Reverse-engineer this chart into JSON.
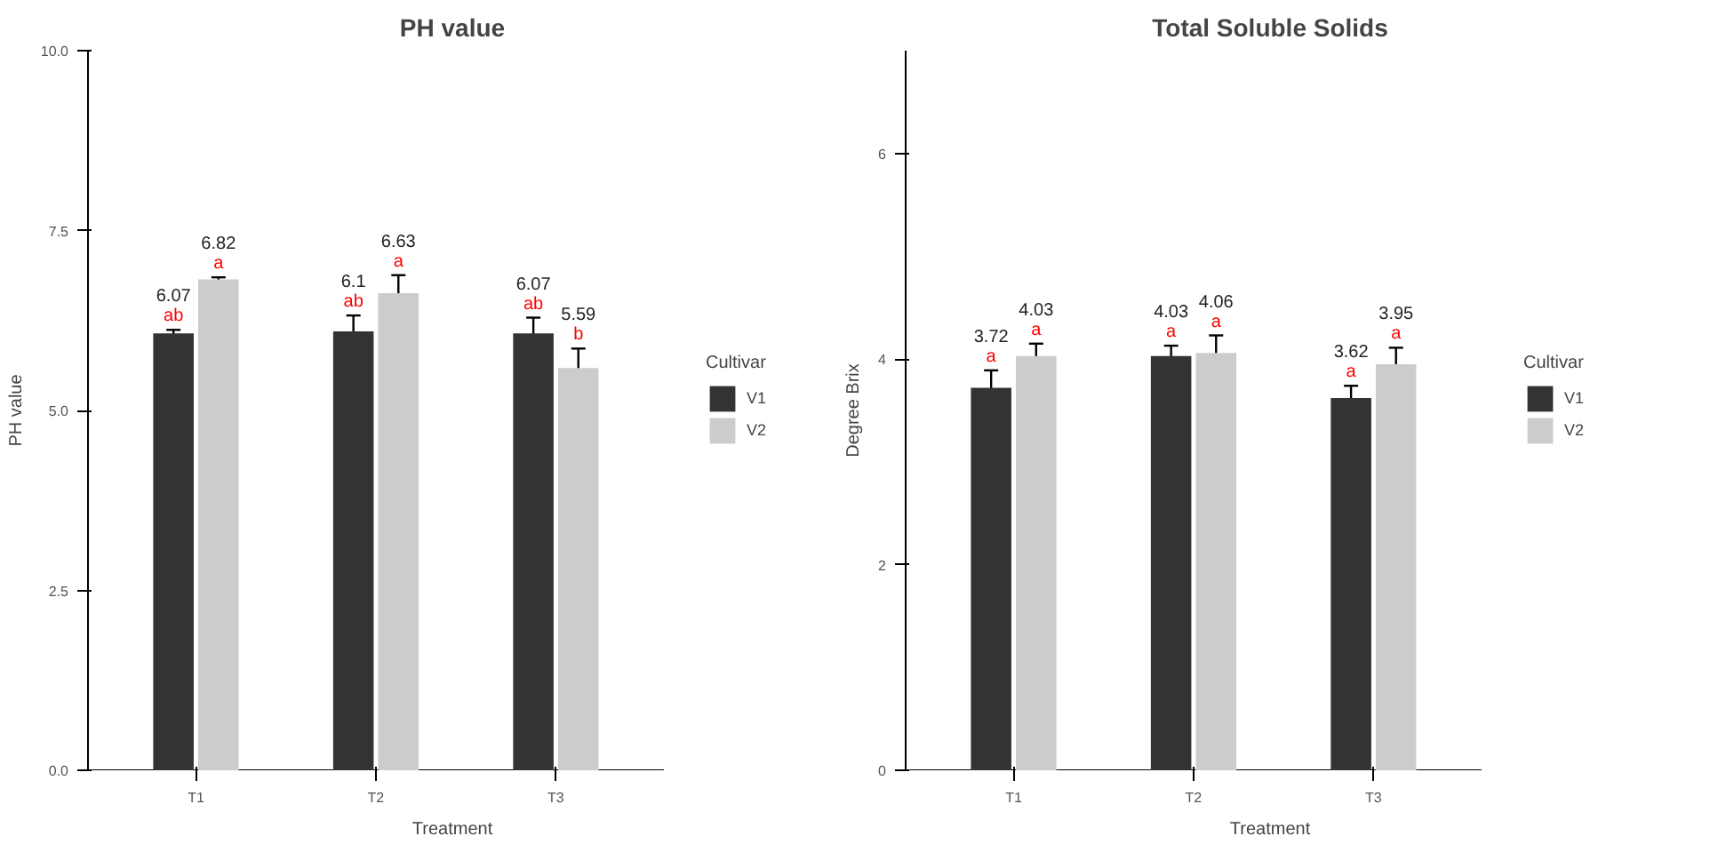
{
  "chart_data": [
    {
      "type": "bar",
      "title": "PH value",
      "xlabel": "Treatment",
      "ylabel": "PH value",
      "legend_title": "Cultivar",
      "legend": "right",
      "grid": false,
      "data_labels": true,
      "categories": [
        "T1",
        "T2",
        "T3"
      ],
      "ylim": [
        0,
        10
      ],
      "yticks": [
        {
          "value": 0,
          "label": "0.0"
        },
        {
          "value": 2.5,
          "label": "2.5"
        },
        {
          "value": 5,
          "label": "5.0"
        },
        {
          "value": 7.5,
          "label": "7.5"
        },
        {
          "value": 10,
          "label": "10.0"
        }
      ],
      "series": [
        {
          "name": "V1",
          "color": "#333333",
          "values": [
            6.07,
            6.1,
            6.07
          ],
          "errors": [
            0.05,
            0.22,
            0.22
          ]
        },
        {
          "name": "V2",
          "color": "#cccccc",
          "values": [
            6.82,
            6.63,
            5.59
          ],
          "errors": [
            0.03,
            0.25,
            0.27
          ]
        }
      ],
      "annotations": [
        "ab",
        "ab",
        "ab",
        "a",
        "a",
        "b"
      ]
    },
    {
      "type": "bar",
      "title": "Total Soluble Solids",
      "xlabel": "Treatment",
      "ylabel": "Degree Brix",
      "legend_title": "Cultivar",
      "legend": "right",
      "grid": false,
      "data_labels": true,
      "categories": [
        "T1",
        "T2",
        "T3"
      ],
      "ylim": [
        0,
        7
      ],
      "yticks": [
        0,
        2,
        4,
        6
      ],
      "series": [
        {
          "name": "V1",
          "color": "#333333",
          "values": [
            3.72,
            4.03,
            3.62
          ],
          "errors": [
            0.17,
            0.1,
            0.12
          ]
        },
        {
          "name": "V2",
          "color": "#cccccc",
          "values": [
            4.03,
            4.06,
            3.95
          ],
          "errors": [
            0.12,
            0.17,
            0.16
          ]
        }
      ],
      "annotations": [
        "a",
        "a",
        "a",
        "a",
        "a",
        "a"
      ]
    }
  ]
}
